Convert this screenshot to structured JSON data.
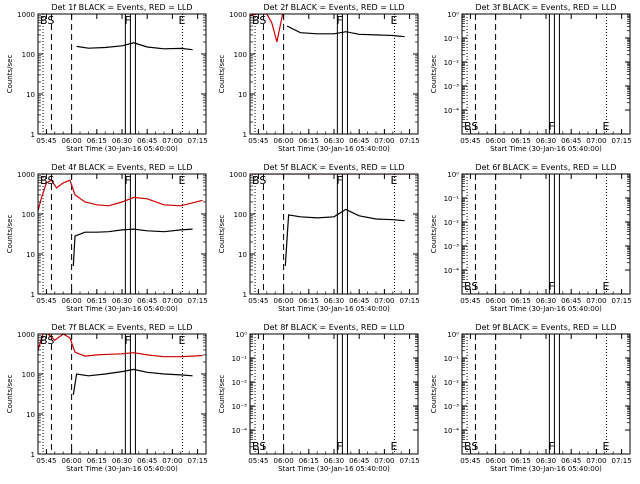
{
  "figure": {
    "xlabel": "Start Time (30-Jan-16 05:40:00)",
    "x_ticks": [
      "05:45",
      "06:00",
      "06:15",
      "06:30",
      "06:45",
      "07:00",
      "07:15"
    ],
    "ylabel": "Counts/sec",
    "y_tick_counts": [
      "1",
      "10",
      "100",
      "1000"
    ],
    "y_tick_rates": [
      "10⁰",
      "10⁻¹",
      "10⁻²",
      "10⁻³",
      "10⁻⁴"
    ],
    "colors": {
      "events": "#000000",
      "lld": "#cc0000"
    }
  },
  "chart_data": [
    {
      "type": "line",
      "title": "Det 1f BLACK = Events, RED = LLD",
      "scale": "counts",
      "ylim": [
        1,
        1000
      ],
      "yscale": "log",
      "xlim": [
        "05:40",
        "07:20"
      ],
      "markers": [
        {
          "label": "BS",
          "time": "05:43",
          "style": "dotted"
        },
        {
          "label": "F",
          "time": "06:35",
          "style": "solid"
        },
        {
          "label": "E",
          "time": "07:06",
          "style": "dotted"
        }
      ],
      "vlines": [
        {
          "time": "05:48",
          "style": "dashed"
        },
        {
          "time": "06:00",
          "style": "dashed"
        },
        {
          "time": "06:32",
          "style": "solid"
        },
        {
          "time": "06:38",
          "style": "solid"
        }
      ],
      "series": [
        {
          "kind": "events",
          "x": [
            "06:03",
            "06:10",
            "06:20",
            "06:30",
            "06:37",
            "06:45",
            "06:55",
            "07:05",
            "07:12"
          ],
          "y": [
            155,
            140,
            145,
            160,
            190,
            150,
            135,
            138,
            128
          ]
        }
      ]
    },
    {
      "type": "line",
      "title": "Det 2f BLACK = Events, RED = LLD",
      "scale": "counts",
      "ylim": [
        1,
        1000
      ],
      "yscale": "log",
      "xlim": [
        "05:40",
        "07:20"
      ],
      "markers": [
        {
          "label": "BS",
          "time": "05:43",
          "style": "dotted"
        },
        {
          "label": "F",
          "time": "06:35",
          "style": "solid"
        },
        {
          "label": "E",
          "time": "07:06",
          "style": "dotted"
        }
      ],
      "vlines": [
        {
          "time": "05:48",
          "style": "dashed"
        },
        {
          "time": "06:00",
          "style": "dashed"
        },
        {
          "time": "06:32",
          "style": "solid"
        },
        {
          "time": "06:38",
          "style": "solid"
        }
      ],
      "series": [
        {
          "kind": "lld",
          "x": [
            "05:40",
            "05:44",
            "05:47",
            "05:50",
            "05:53",
            "05:56",
            "06:00",
            "06:10",
            "06:20",
            "06:30",
            "06:40",
            "06:50",
            "07:00",
            "07:10",
            "07:18"
          ],
          "y": [
            900,
            1000,
            1000,
            1000,
            600,
            200,
            1300,
            1300,
            1350,
            1350,
            1300,
            1300,
            1250,
            1280,
            1250
          ]
        },
        {
          "kind": "events",
          "x": [
            "06:02",
            "06:10",
            "06:20",
            "06:30",
            "06:37",
            "06:45",
            "06:55",
            "07:05",
            "07:12"
          ],
          "y": [
            500,
            340,
            320,
            320,
            360,
            310,
            300,
            290,
            270
          ]
        }
      ]
    },
    {
      "type": "line",
      "title": "Det 3f BLACK = Events, RED = LLD",
      "scale": "rate",
      "ylim": [
        1e-05,
        1
      ],
      "yscale": "log",
      "xlim": [
        "05:40",
        "07:20"
      ],
      "markers": [
        {
          "label": "BS",
          "time": "05:43",
          "style": "dotted"
        },
        {
          "label": "F",
          "time": "06:35",
          "style": "solid"
        },
        {
          "label": "E",
          "time": "07:06",
          "style": "dotted"
        }
      ],
      "vlines": [
        {
          "time": "05:48",
          "style": "dashed"
        },
        {
          "time": "06:00",
          "style": "dashed"
        },
        {
          "time": "06:32",
          "style": "solid"
        },
        {
          "time": "06:38",
          "style": "solid"
        }
      ],
      "series": []
    },
    {
      "type": "line",
      "title": "Det 4f BLACK = Events, RED = LLD",
      "scale": "counts",
      "ylim": [
        1,
        1000
      ],
      "yscale": "log",
      "xlim": [
        "05:40",
        "07:20"
      ],
      "markers": [
        {
          "label": "BS",
          "time": "05:43",
          "style": "dotted"
        },
        {
          "label": "F",
          "time": "06:35",
          "style": "solid"
        },
        {
          "label": "E",
          "time": "07:06",
          "style": "dotted"
        }
      ],
      "vlines": [
        {
          "time": "05:48",
          "style": "dashed"
        },
        {
          "time": "06:00",
          "style": "dashed"
        },
        {
          "time": "06:32",
          "style": "solid"
        },
        {
          "time": "06:38",
          "style": "solid"
        }
      ],
      "series": [
        {
          "kind": "lld",
          "x": [
            "05:40",
            "05:42",
            "05:45",
            "05:48",
            "05:51",
            "05:55",
            "05:59",
            "06:02",
            "06:08",
            "06:15",
            "06:22",
            "06:30",
            "06:37",
            "06:45",
            "06:55",
            "07:05",
            "07:12",
            "07:18"
          ],
          "y": [
            120,
            250,
            600,
            700,
            450,
            600,
            700,
            300,
            200,
            170,
            160,
            200,
            260,
            240,
            170,
            160,
            190,
            220
          ]
        },
        {
          "kind": "events",
          "x": [
            "06:01",
            "06:02",
            "06:08",
            "06:15",
            "06:22",
            "06:30",
            "06:37",
            "06:45",
            "06:55",
            "07:05",
            "07:12"
          ],
          "y": [
            5,
            28,
            35,
            35,
            36,
            40,
            42,
            38,
            36,
            40,
            42
          ]
        }
      ]
    },
    {
      "type": "line",
      "title": "Det 5f BLACK = Events, RED = LLD",
      "scale": "counts",
      "ylim": [
        1,
        1000
      ],
      "yscale": "log",
      "xlim": [
        "05:40",
        "07:20"
      ],
      "markers": [
        {
          "label": "BS",
          "time": "05:43",
          "style": "dotted"
        },
        {
          "label": "F",
          "time": "06:35",
          "style": "solid"
        },
        {
          "label": "E",
          "time": "07:06",
          "style": "dotted"
        }
      ],
      "vlines": [
        {
          "time": "05:48",
          "style": "dashed"
        },
        {
          "time": "06:00",
          "style": "dashed"
        },
        {
          "time": "06:32",
          "style": "solid"
        },
        {
          "time": "06:38",
          "style": "solid"
        }
      ],
      "series": [
        {
          "kind": "lld",
          "x": [
            "05:40",
            "06:00",
            "06:20",
            "06:40",
            "07:00",
            "07:20"
          ],
          "y": [
            1000,
            1000,
            1000,
            1000,
            1000,
            1000
          ]
        },
        {
          "kind": "events",
          "x": [
            "06:01",
            "06:03",
            "06:10",
            "06:20",
            "06:30",
            "06:37",
            "06:45",
            "06:55",
            "07:05",
            "07:12"
          ],
          "y": [
            5,
            95,
            85,
            80,
            85,
            130,
            90,
            75,
            72,
            68
          ]
        }
      ]
    },
    {
      "type": "line",
      "title": "Det 6f BLACK = Events, RED = LLD",
      "scale": "rate",
      "ylim": [
        1e-05,
        1
      ],
      "yscale": "log",
      "xlim": [
        "05:40",
        "07:20"
      ],
      "markers": [
        {
          "label": "BS",
          "time": "05:43",
          "style": "dotted"
        },
        {
          "label": "F",
          "time": "06:35",
          "style": "solid"
        },
        {
          "label": "E",
          "time": "07:06",
          "style": "dotted"
        }
      ],
      "vlines": [
        {
          "time": "05:48",
          "style": "dashed"
        },
        {
          "time": "06:00",
          "style": "dashed"
        },
        {
          "time": "06:32",
          "style": "solid"
        },
        {
          "time": "06:38",
          "style": "solid"
        }
      ],
      "series": []
    },
    {
      "type": "line",
      "title": "Det 7f BLACK = Events, RED = LLD",
      "scale": "counts",
      "ylim": [
        1,
        1000
      ],
      "yscale": "log",
      "xlim": [
        "05:40",
        "07:20"
      ],
      "markers": [
        {
          "label": "BS",
          "time": "05:43",
          "style": "dotted"
        },
        {
          "label": "F",
          "time": "06:35",
          "style": "solid"
        },
        {
          "label": "E",
          "time": "07:06",
          "style": "dotted"
        }
      ],
      "vlines": [
        {
          "time": "05:48",
          "style": "dashed"
        },
        {
          "time": "06:00",
          "style": "dashed"
        },
        {
          "time": "06:32",
          "style": "solid"
        },
        {
          "time": "06:38",
          "style": "solid"
        }
      ],
      "series": [
        {
          "kind": "lld",
          "x": [
            "05:40",
            "05:43",
            "05:46",
            "05:50",
            "05:55",
            "05:59",
            "06:02",
            "06:08",
            "06:15",
            "06:22",
            "06:30",
            "06:37",
            "06:45",
            "06:55",
            "07:05",
            "07:12",
            "07:18"
          ],
          "y": [
            400,
            1000,
            1000,
            700,
            1000,
            800,
            350,
            280,
            300,
            310,
            320,
            340,
            300,
            270,
            270,
            280,
            290
          ]
        },
        {
          "kind": "events",
          "x": [
            "06:01",
            "06:03",
            "06:10",
            "06:20",
            "06:30",
            "06:37",
            "06:45",
            "06:55",
            "07:05",
            "07:12"
          ],
          "y": [
            30,
            100,
            90,
            100,
            115,
            130,
            110,
            100,
            95,
            90
          ]
        }
      ]
    },
    {
      "type": "line",
      "title": "Det 8f BLACK = Events, RED = LLD",
      "scale": "rate",
      "ylim": [
        1e-05,
        1
      ],
      "yscale": "log",
      "xlim": [
        "05:40",
        "07:20"
      ],
      "markers": [
        {
          "label": "BS",
          "time": "05:43",
          "style": "dotted"
        },
        {
          "label": "F",
          "time": "06:35",
          "style": "solid"
        },
        {
          "label": "E",
          "time": "07:06",
          "style": "dotted"
        }
      ],
      "vlines": [
        {
          "time": "05:48",
          "style": "dashed"
        },
        {
          "time": "06:00",
          "style": "dashed"
        },
        {
          "time": "06:32",
          "style": "solid"
        },
        {
          "time": "06:38",
          "style": "solid"
        }
      ],
      "series": []
    },
    {
      "type": "line",
      "title": "Det 9f BLACK = Events, RED = LLD",
      "scale": "rate",
      "ylim": [
        1e-05,
        1
      ],
      "yscale": "log",
      "xlim": [
        "05:40",
        "07:20"
      ],
      "markers": [
        {
          "label": "BS",
          "time": "05:43",
          "style": "dotted"
        },
        {
          "label": "F",
          "time": "06:35",
          "style": "solid"
        },
        {
          "label": "E",
          "time": "07:06",
          "style": "dotted"
        }
      ],
      "vlines": [
        {
          "time": "05:48",
          "style": "dashed"
        },
        {
          "time": "06:00",
          "style": "dashed"
        },
        {
          "time": "06:32",
          "style": "solid"
        },
        {
          "time": "06:38",
          "style": "solid"
        }
      ],
      "series": []
    }
  ]
}
